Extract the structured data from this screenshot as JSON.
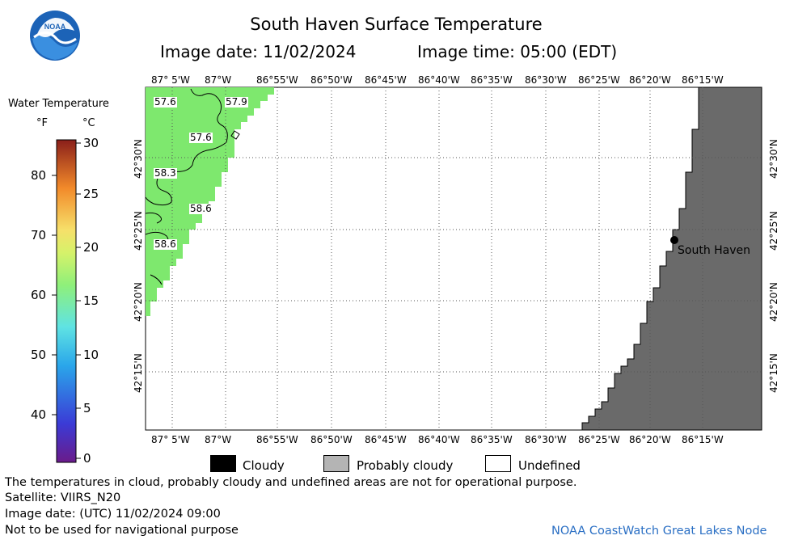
{
  "header": {
    "title": "South Haven Surface Temperature",
    "image_date": "Image date: 11/02/2024",
    "image_time": "Image time: 05:00 (EDT)",
    "logo_text": "NOAA"
  },
  "scale": {
    "title": "Water Temperature",
    "unit_f": "°F",
    "unit_c": "°C",
    "f_ticks": [
      "80",
      "70",
      "60",
      "50",
      "40"
    ],
    "c_ticks": [
      "30",
      "25",
      "20",
      "15",
      "10",
      "5",
      "0"
    ]
  },
  "map": {
    "lon_labels": [
      "87° 5'W",
      "87°W",
      "86°55'W",
      "86°50'W",
      "86°45'W",
      "86°40'W",
      "86°35'W",
      "86°30'W",
      "86°25'W",
      "86°20'W",
      "86°15'W"
    ],
    "lat_labels": [
      "42°30'N",
      "42°25'N",
      "42°20'N",
      "42°15'N"
    ],
    "temp_labels": [
      "57.6",
      "57.9",
      "57.6",
      "58.3",
      "58.6",
      "58.6"
    ],
    "city": "South Haven",
    "colors": {
      "water": "#7ee86e",
      "land": "#6a6a6a"
    }
  },
  "legend": {
    "cloudy": "Cloudy",
    "probably_cloudy": "Probably cloudy",
    "undefined": "Undefined",
    "cloudy_color": "#000000",
    "probably_cloudy_color": "#b4b4b4",
    "undefined_color": "#ffffff"
  },
  "footer": {
    "disclaimer": "The temperatures in cloud, probably cloudy and undefined areas are not for operational purpose.",
    "satellite": "Satellite: VIIRS_N20",
    "utc_date": "Image date: (UTC) 11/02/2024  09:00",
    "nav_warning": "Not to be used for navigational purpose",
    "credit": "NOAA CoastWatch Great Lakes Node"
  }
}
